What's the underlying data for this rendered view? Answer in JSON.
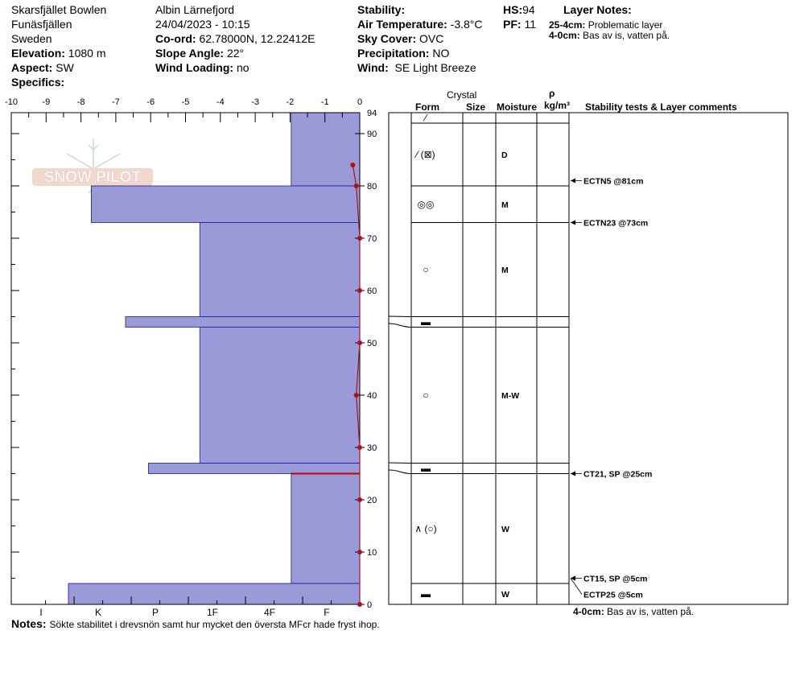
{
  "header": {
    "location": "Skarsfjället Bowlen",
    "region": "Funäsfjällen",
    "country": "Sweden",
    "elevation_label": "Elevation:",
    "elevation": "1080 m",
    "aspect_label": "Aspect:",
    "aspect": "SW",
    "specifics_label": "Specifics:",
    "observer": "Albin  Lärnefjord",
    "datetime": "24/04/2023 - 10:15",
    "coord_label": "Co-ord:",
    "coord": "62.78000N, 12.22412E",
    "slope_label": "Slope Angle:",
    "slope": "22°",
    "wind_loading_label": "Wind Loading:",
    "wind_loading": "no",
    "stability_label": "Stability:",
    "air_temp_label": "Air Temperature:",
    "air_temp": "-3.8°C",
    "sky_label": "Sky Cover:",
    "sky": "OVC",
    "precip_label": "Precipitation:",
    "precip": "NO",
    "wind_label": "Wind:",
    "wind": "SE Light Breeze",
    "hs_label": "HS:",
    "hs": "94",
    "pf_label": "PF:",
    "pf": "11",
    "layer_notes_title": "Layer Notes:",
    "layer_notes": [
      {
        "depth": "25-4cm:",
        "text": "Problematic layer"
      },
      {
        "depth": "4-0cm:",
        "text": "Bas av is, vatten på."
      }
    ]
  },
  "logo_text": "SNOW PILOT",
  "columns": {
    "crystal": "Crystal",
    "form": "Form",
    "size": "Size",
    "moisture": "Moisture",
    "rho": "ρ",
    "density_unit": "kg/m³",
    "stability": "Stability tests & Layer comments"
  },
  "notes_label": "Notes:",
  "notes": "Sökte stabilitet i drevsnön samt hur mycket den översta MFcr hade fryst ihop.",
  "bottom_comment_depth": "4-0cm:",
  "bottom_comment": "Bas av is, vatten på.",
  "chart_data": {
    "type": "bar",
    "title": "",
    "hs": 94,
    "temp_axis": {
      "ticks": [
        -10,
        -9,
        -8,
        -7,
        -6,
        -5,
        -4,
        -3,
        -2,
        -1,
        0
      ],
      "range": [
        -10,
        0
      ]
    },
    "hardness_axis": {
      "labels": [
        "I",
        "K",
        "P",
        "1F",
        "4F",
        "F"
      ],
      "range": [
        0,
        6
      ]
    },
    "depth_axis": {
      "ticks": [
        0,
        10,
        20,
        30,
        40,
        50,
        60,
        70,
        80,
        90
      ],
      "top_label": "94",
      "range": [
        0,
        94
      ]
    },
    "hardness_profile": [
      {
        "top": 94,
        "bottom": 80,
        "hardness": 1.2
      },
      {
        "top": 80,
        "bottom": 73,
        "hardness": 4.7
      },
      {
        "top": 73,
        "bottom": 55,
        "hardness": 2.8
      },
      {
        "top": 55,
        "bottom": 53,
        "hardness": 4.1
      },
      {
        "top": 53,
        "bottom": 27,
        "hardness": 2.8
      },
      {
        "top": 27,
        "bottom": 25,
        "hardness": 3.7
      },
      {
        "top": 25,
        "bottom": 4,
        "hardness": 1.2
      },
      {
        "top": 4,
        "bottom": 0,
        "hardness": 5.1
      }
    ],
    "temperature_profile": [
      {
        "depth": 84,
        "temp": -0.2
      },
      {
        "depth": 80,
        "temp": -0.1
      },
      {
        "depth": 70,
        "temp": 0.0
      },
      {
        "depth": 60,
        "temp": 0.0
      },
      {
        "depth": 50,
        "temp": 0.0
      },
      {
        "depth": 40,
        "temp": -0.1
      },
      {
        "depth": 30,
        "temp": 0.0
      },
      {
        "depth": 20,
        "temp": 0.0
      },
      {
        "depth": 10,
        "temp": 0.0
      },
      {
        "depth": 0,
        "temp": 0.0
      }
    ],
    "layers": [
      {
        "top": 94,
        "bottom": 92,
        "form": "⁄",
        "moisture": ""
      },
      {
        "top": 92,
        "bottom": 80,
        "form": "⁄ (⊠)",
        "moisture": "D"
      },
      {
        "top": 80,
        "bottom": 73,
        "form": "◎◎",
        "moisture": "M"
      },
      {
        "top": 73,
        "bottom": 55,
        "form": "○",
        "moisture": "M"
      },
      {
        "top": 55,
        "bottom": 53,
        "form": "▬",
        "moisture": ""
      },
      {
        "top": 53,
        "bottom": 27,
        "form": "○",
        "moisture": "M-W"
      },
      {
        "top": 27,
        "bottom": 25,
        "form": "▬",
        "moisture": ""
      },
      {
        "top": 25,
        "bottom": 4,
        "form": "∧ (○)",
        "moisture": "W"
      },
      {
        "top": 4,
        "bottom": 0,
        "form": "▬",
        "moisture": "W"
      }
    ],
    "stability_tests": [
      {
        "depth": 81,
        "label": "ECTN5 @81cm"
      },
      {
        "depth": 73,
        "label": "ECTN23 @73cm"
      },
      {
        "depth": 25,
        "label": "CT21, SP @25cm"
      },
      {
        "depth": 5,
        "label": "CT15, SP @5cm"
      },
      {
        "depth": 5,
        "label": "ECTP25 @5cm"
      }
    ],
    "highlight_depth": 25,
    "colors": {
      "bar": "#9a9ad8",
      "bar_edge": "#1a1aa0",
      "temp": "#b01010",
      "highlight": "#cc0000"
    }
  }
}
